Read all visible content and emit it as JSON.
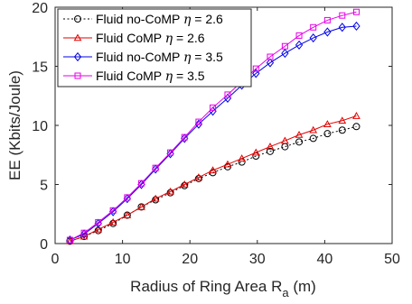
{
  "chart_data": {
    "type": "line",
    "xlabel": "Radius of Ring Area R",
    "xlabel_subscript": "a",
    "xlabel_unit": " (m)",
    "ylabel": "EE (Kbits/Joule)",
    "xlim": [
      0,
      50
    ],
    "ylim": [
      0,
      20
    ],
    "x_ticks": [
      0,
      10,
      20,
      30,
      40,
      50
    ],
    "y_ticks": [
      0,
      5,
      10,
      15,
      20
    ],
    "grid": false,
    "legend_position": "top-left",
    "x": [
      2.2,
      4.3,
      6.4,
      8.6,
      10.7,
      12.8,
      14.9,
      17.1,
      19.2,
      21.3,
      23.4,
      25.6,
      27.7,
      29.8,
      31.9,
      34.1,
      36.2,
      38.3,
      40.4,
      42.6,
      44.7
    ],
    "series": [
      {
        "name_parts": [
          "Fluid no-CoMP ",
          "η",
          " = 2.6"
        ],
        "color": "#000000",
        "dash": "2,2.5",
        "marker": "circle",
        "values": [
          0.2,
          0.6,
          1.1,
          1.7,
          2.4,
          3.1,
          3.7,
          4.3,
          4.9,
          5.5,
          6.0,
          6.5,
          6.9,
          7.4,
          7.8,
          8.2,
          8.6,
          8.9,
          9.3,
          9.6,
          9.9
        ]
      },
      {
        "name_parts": [
          "Fluid CoMP ",
          "η",
          " = 2.6"
        ],
        "color": "#e00000",
        "dash": "",
        "marker": "triangle",
        "values": [
          0.2,
          0.6,
          1.2,
          1.8,
          2.4,
          3.1,
          3.8,
          4.4,
          5.0,
          5.6,
          6.2,
          6.7,
          7.2,
          7.7,
          8.2,
          8.7,
          9.2,
          9.6,
          10.1,
          10.4,
          10.8
        ]
      },
      {
        "name_parts": [
          "Fluid no-CoMP ",
          "η",
          " = 3.5"
        ],
        "color": "#0000e6",
        "dash": "",
        "marker": "diamond",
        "values": [
          0.3,
          0.8,
          1.7,
          2.7,
          3.8,
          5.0,
          6.3,
          7.6,
          8.9,
          10.1,
          11.2,
          12.3,
          13.4,
          14.4,
          15.3,
          16.1,
          16.8,
          17.4,
          17.9,
          18.3,
          18.4
        ]
      },
      {
        "name_parts": [
          "Fluid CoMP ",
          "η",
          " = 3.5"
        ],
        "color": "#e600e6",
        "dash": "",
        "marker": "square",
        "values": [
          0.3,
          0.9,
          1.8,
          2.8,
          3.9,
          5.1,
          6.4,
          7.7,
          9.0,
          10.3,
          11.5,
          12.6,
          13.7,
          14.8,
          15.8,
          16.7,
          17.6,
          18.3,
          18.9,
          19.3,
          19.6
        ]
      }
    ]
  }
}
